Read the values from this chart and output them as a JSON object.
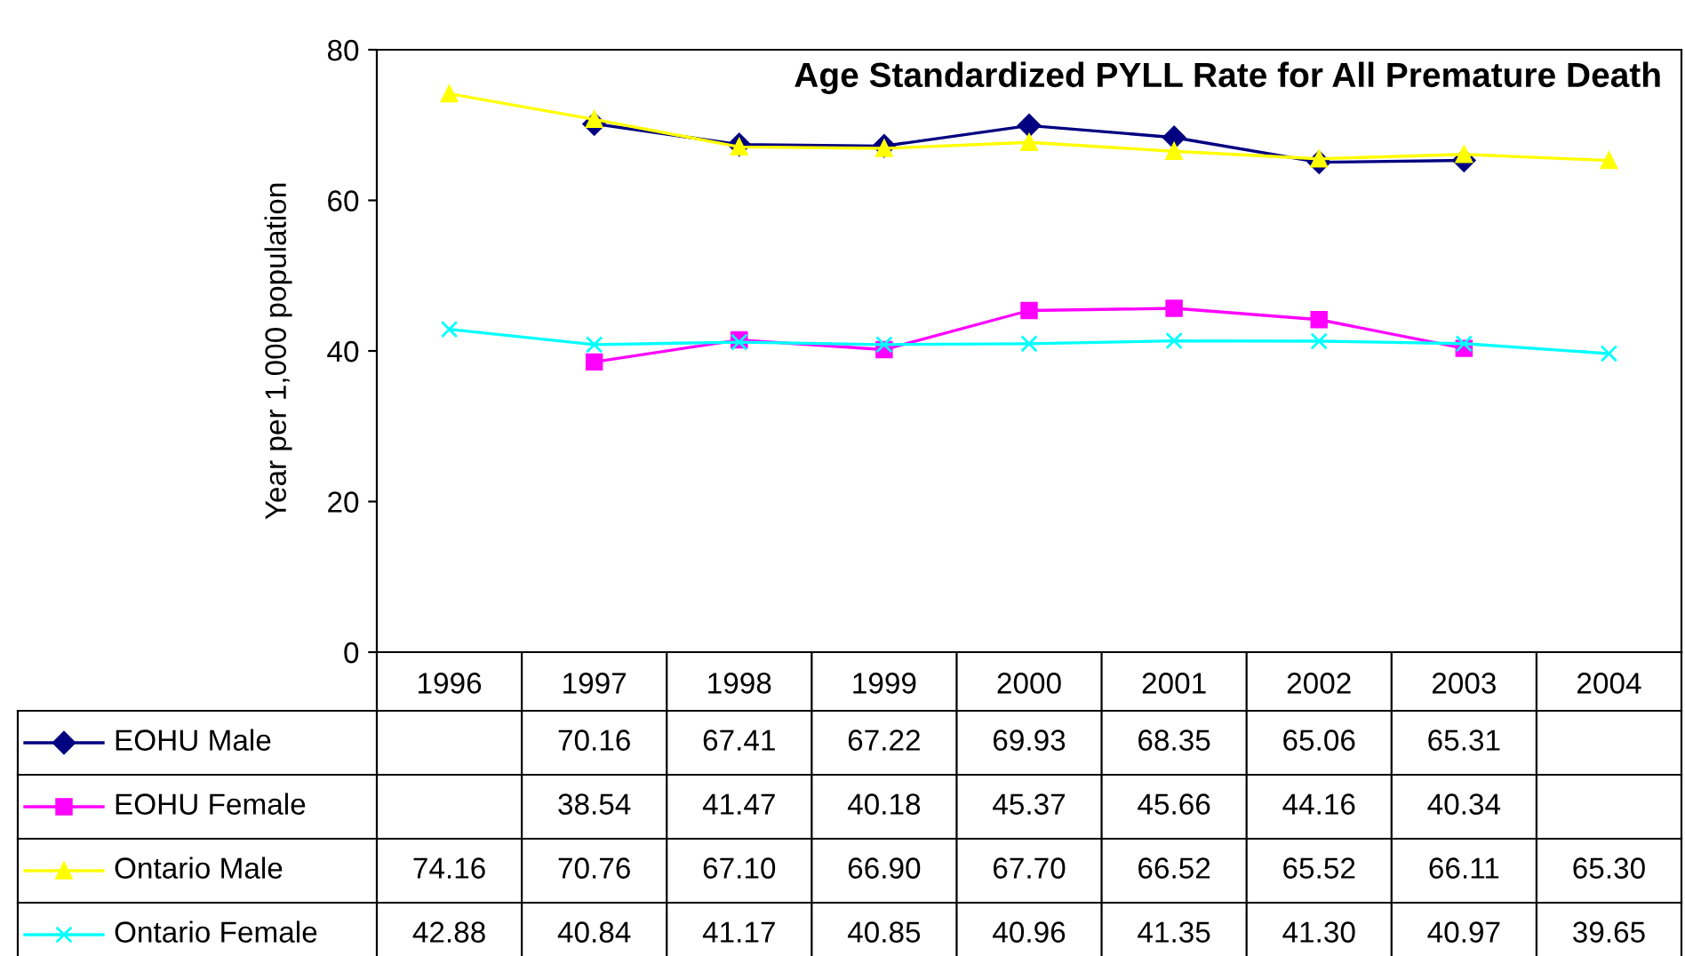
{
  "chart_data": {
    "type": "line",
    "title": "Age Standardized PYLL Rate for All Premature Death",
    "ylabel": "Year per 1,000 population",
    "categories": [
      "1996",
      "1997",
      "1998",
      "1999",
      "2000",
      "2001",
      "2002",
      "2003",
      "2004"
    ],
    "ylim": [
      0,
      80
    ],
    "yticks": [
      0,
      20,
      40,
      60,
      80
    ],
    "grid": false,
    "legend": "bottom",
    "series": [
      {
        "name": "EOHU Male",
        "color": "#000080",
        "marker": "diamond",
        "values": [
          null,
          70.16,
          67.41,
          67.22,
          69.93,
          68.35,
          65.06,
          65.31,
          null
        ],
        "value_labels": [
          null,
          "70.16",
          "67.41",
          "67.22",
          "69.93",
          "68.35",
          "65.06",
          "65.31",
          null
        ]
      },
      {
        "name": "EOHU Female",
        "color": "#ff00ff",
        "marker": "square",
        "values": [
          null,
          38.54,
          41.47,
          40.18,
          45.37,
          45.66,
          44.16,
          40.34,
          null
        ],
        "value_labels": [
          null,
          "38.54",
          "41.47",
          "40.18",
          "45.37",
          "45.66",
          "44.16",
          "40.34",
          null
        ]
      },
      {
        "name": "Ontario Male",
        "color": "#ffff00",
        "marker": "triangle",
        "values": [
          74.16,
          70.76,
          67.1,
          66.9,
          67.7,
          66.52,
          65.52,
          66.11,
          65.3
        ],
        "value_labels": [
          "74.16",
          "70.76",
          "67.10",
          "66.90",
          "67.70",
          "66.52",
          "65.52",
          "66.11",
          "65.30"
        ]
      },
      {
        "name": "Ontario Female",
        "color": "#00ffff",
        "marker": "cross",
        "values": [
          42.88,
          40.84,
          41.17,
          40.85,
          40.96,
          41.35,
          41.3,
          40.97,
          39.65
        ],
        "value_labels": [
          "42.88",
          "40.84",
          "41.17",
          "40.85",
          "40.96",
          "41.35",
          "41.30",
          "40.97",
          "39.65"
        ]
      }
    ]
  }
}
